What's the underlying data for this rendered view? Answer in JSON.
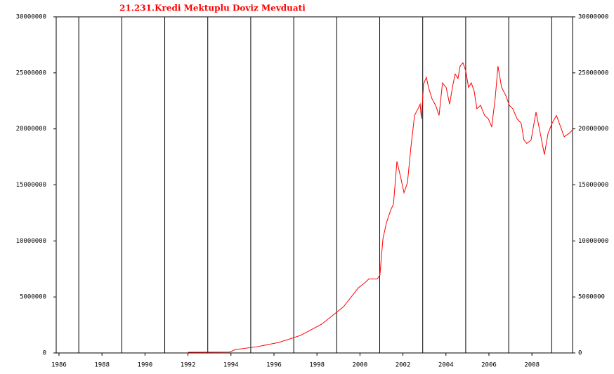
{
  "chart_data": {
    "type": "line",
    "title": "21.231.Kredi Mektuplu Doviz Mevduati",
    "x": [
      1992.01,
      1993.94,
      1994.2,
      1995.22,
      1996.23,
      1997.24,
      1998.22,
      1999.24,
      1999.92,
      2000.25,
      2000.41,
      2000.8,
      2000.93,
      2001.07,
      2001.23,
      2001.42,
      2001.56,
      2001.72,
      2001.88,
      2002.05,
      2002.21,
      2002.37,
      2002.54,
      2002.7,
      2002.8,
      2002.86,
      2002.96,
      2003.09,
      2003.19,
      2003.35,
      2003.52,
      2003.68,
      2003.84,
      2004.01,
      2004.17,
      2004.33,
      2004.43,
      2004.56,
      2004.66,
      2004.79,
      2004.92,
      2005.05,
      2005.18,
      2005.31,
      2005.44,
      2005.61,
      2005.8,
      2005.97,
      2006.13,
      2006.29,
      2006.42,
      2006.59,
      2006.78,
      2006.95,
      2007.11,
      2007.31,
      2007.5,
      2007.63,
      2007.76,
      2007.96,
      2008.19,
      2008.39,
      2008.58,
      2008.75,
      2008.94,
      2009.14,
      2009.33,
      2009.5,
      2009.73,
      2009.89
    ],
    "series": [
      {
        "color": "#ff0000",
        "values": [
          60000,
          80000,
          300000,
          560000,
          940000,
          1570000,
          2570000,
          4130000,
          5800000,
          6300000,
          6600000,
          6600000,
          6950000,
          10200000,
          11600000,
          12700000,
          13300000,
          17100000,
          15800000,
          14300000,
          15200000,
          18350000,
          21200000,
          21800000,
          22200000,
          20900000,
          24000000,
          24600000,
          23700000,
          22700000,
          22100000,
          21200000,
          24100000,
          23700000,
          22200000,
          24000000,
          24900000,
          24500000,
          25600000,
          25900000,
          25200000,
          23700000,
          24100000,
          23400000,
          21800000,
          22100000,
          21200000,
          20900000,
          20200000,
          22700000,
          25600000,
          23700000,
          23000000,
          22100000,
          21800000,
          20900000,
          20500000,
          19000000,
          18700000,
          19000000,
          21500000,
          19600000,
          17700000,
          19600000,
          20500000,
          21200000,
          20200000,
          19300000,
          19600000,
          19900000
        ]
      }
    ],
    "xlim": [
      1985.87,
      2009.89
    ],
    "xticks": [
      1986,
      1988,
      1990,
      1992,
      1994,
      1996,
      1998,
      2000,
      2002,
      2004,
      2006,
      2008
    ],
    "vlines": [
      1986.92,
      1988.92,
      1990.92,
      1992.92,
      1994.92,
      1996.92,
      1998.92,
      2000.92,
      2002.92,
      2004.92,
      2006.92,
      2008.92
    ],
    "ylim": [
      0,
      30000000
    ],
    "yticks": [
      0,
      5000000,
      10000000,
      15000000,
      20000000,
      25000000,
      30000000
    ]
  }
}
